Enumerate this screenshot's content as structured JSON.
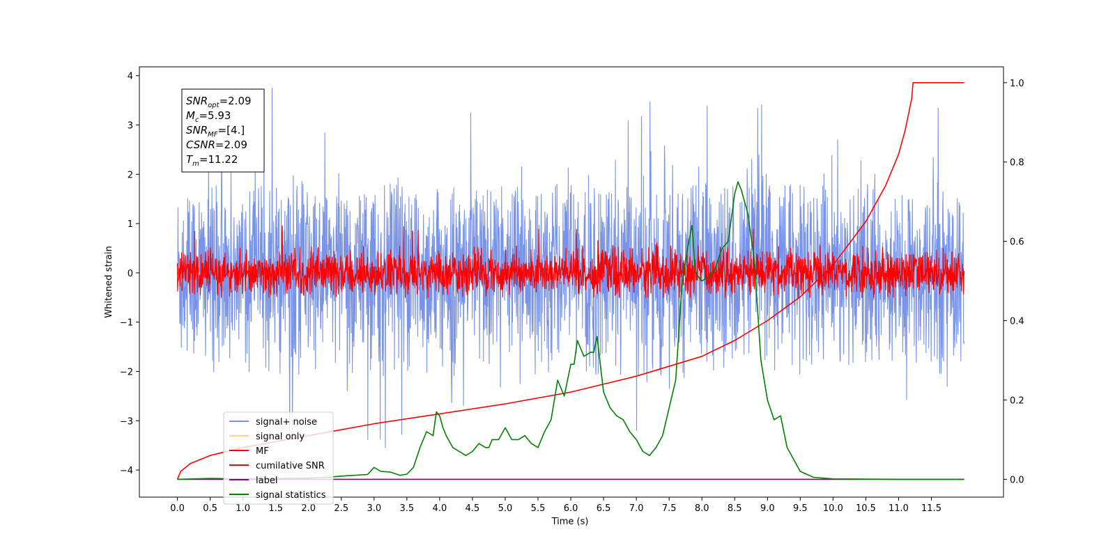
{
  "chart_data": {
    "type": "line",
    "title": "",
    "xlabel": "Time (s)",
    "ylabel": "Whitened strain",
    "xlim": [
      -0.58,
      12.6
    ],
    "ylim": [
      -4.55,
      4.18
    ],
    "y2lim": [
      -0.045,
      1.04
    ],
    "grid": false,
    "legend_position": "lower-left",
    "x_ticks": [
      0.0,
      0.5,
      1.0,
      1.5,
      2.0,
      2.5,
      3.0,
      3.5,
      4.0,
      4.5,
      5.0,
      5.5,
      6.0,
      6.5,
      7.0,
      7.5,
      8.0,
      8.5,
      9.0,
      9.5,
      10.0,
      10.5,
      11.0,
      11.5
    ],
    "x_tick_labels": [
      "0.0",
      "0.5",
      "1.0",
      "1.5",
      "2.0",
      "2.5",
      "3.0",
      "3.5",
      "4.0",
      "4.5",
      "5.0",
      "5.5",
      "6.0",
      "6.5",
      "7.0",
      "7.5",
      "8.0",
      "8.5",
      "9.0",
      "9.5",
      "10.0",
      "10.5",
      "11.0",
      "11.5"
    ],
    "y_ticks": [
      4,
      3,
      2,
      1,
      0,
      -1,
      -2,
      -3,
      -4
    ],
    "y_tick_labels": [
      "4",
      "3",
      "2",
      "1",
      "0",
      "−1",
      "−2",
      "−3",
      "−4"
    ],
    "y2_ticks": [
      1.0,
      0.8,
      0.6,
      0.4,
      0.2,
      0.0
    ],
    "y2_tick_labels": [
      "1.0",
      "0.8",
      "0.6",
      "0.4",
      "0.2",
      "0.0"
    ],
    "annotation": [
      {
        "sym": "SNR",
        "sub": "opt",
        "val": "=2.09"
      },
      {
        "sym": "M",
        "sub": "c",
        "val": "=5.93"
      },
      {
        "sym": "SNR",
        "sub": "MF",
        "val": "=[4.]"
      },
      {
        "sym": "CSNR",
        "sub": "",
        "val": "=2.09"
      },
      {
        "sym": "T",
        "sub": "m",
        "val": "=11.22"
      }
    ],
    "series": [
      {
        "name": "signal+ noise",
        "color": "#7893e8",
        "kind": "noise",
        "axis": "left",
        "x_range": [
          0.0,
          12.0
        ],
        "mean": 0.0,
        "envelope": [
          -2.1,
          1.8
        ],
        "extremes": [
          -3.7,
          3.8
        ]
      },
      {
        "name": "signal only",
        "color": "#fbd38a",
        "kind": "line",
        "axis": "left",
        "points": []
      },
      {
        "name": "MF",
        "color": "#ff0000",
        "kind": "noise",
        "axis": "left",
        "x_range": [
          0.0,
          12.0
        ],
        "mean": 0.0,
        "envelope": [
          -0.45,
          0.55
        ],
        "extremes": [
          -0.5,
          1.0
        ]
      },
      {
        "name": "cumilative SNR",
        "color": "#ff0000",
        "kind": "line",
        "axis": "right",
        "x": [
          0.0,
          0.05,
          0.2,
          0.5,
          1.0,
          2.0,
          3.0,
          4.0,
          5.0,
          6.0,
          7.0,
          8.0,
          8.5,
          9.0,
          9.5,
          10.0,
          10.5,
          10.8,
          11.0,
          11.1,
          11.2,
          11.22,
          12.0
        ],
        "y": [
          0.0,
          0.02,
          0.04,
          0.06,
          0.08,
          0.11,
          0.14,
          0.165,
          0.19,
          0.22,
          0.26,
          0.31,
          0.35,
          0.4,
          0.46,
          0.54,
          0.65,
          0.74,
          0.82,
          0.88,
          0.96,
          1.0,
          1.0
        ]
      },
      {
        "name": "label",
        "color": "#800080",
        "kind": "line",
        "axis": "right",
        "x": [
          0.0,
          12.0
        ],
        "y": [
          0.0,
          0.0
        ]
      },
      {
        "name": "signal statistics",
        "color": "#008000",
        "kind": "line",
        "axis": "right",
        "x": [
          0.0,
          0.5,
          1.0,
          1.5,
          2.0,
          2.3,
          2.5,
          2.7,
          2.9,
          3.0,
          3.1,
          3.25,
          3.4,
          3.5,
          3.6,
          3.7,
          3.8,
          3.9,
          3.95,
          4.0,
          4.05,
          4.1,
          4.2,
          4.3,
          4.4,
          4.5,
          4.6,
          4.7,
          4.75,
          4.8,
          4.9,
          5.0,
          5.1,
          5.2,
          5.3,
          5.4,
          5.5,
          5.6,
          5.7,
          5.8,
          5.9,
          6.0,
          6.05,
          6.1,
          6.2,
          6.3,
          6.35,
          6.4,
          6.5,
          6.6,
          6.7,
          6.8,
          6.9,
          7.0,
          7.1,
          7.2,
          7.3,
          7.4,
          7.5,
          7.6,
          7.7,
          7.8,
          7.85,
          7.9,
          8.0,
          8.1,
          8.2,
          8.3,
          8.4,
          8.5,
          8.55,
          8.6,
          8.7,
          8.8,
          8.9,
          9.0,
          9.1,
          9.2,
          9.3,
          9.5,
          9.7,
          10.0,
          11.0,
          12.0
        ],
        "y": [
          0.0,
          0.002,
          0.001,
          0.002,
          0.003,
          0.005,
          0.008,
          0.01,
          0.012,
          0.03,
          0.02,
          0.018,
          0.01,
          0.013,
          0.03,
          0.08,
          0.12,
          0.11,
          0.17,
          0.16,
          0.13,
          0.11,
          0.08,
          0.07,
          0.06,
          0.07,
          0.09,
          0.08,
          0.08,
          0.1,
          0.1,
          0.13,
          0.1,
          0.1,
          0.11,
          0.09,
          0.08,
          0.12,
          0.15,
          0.25,
          0.21,
          0.29,
          0.29,
          0.35,
          0.31,
          0.32,
          0.32,
          0.36,
          0.22,
          0.18,
          0.16,
          0.15,
          0.12,
          0.1,
          0.07,
          0.06,
          0.08,
          0.11,
          0.18,
          0.25,
          0.5,
          0.6,
          0.64,
          0.52,
          0.5,
          0.51,
          0.53,
          0.58,
          0.6,
          0.72,
          0.75,
          0.73,
          0.67,
          0.55,
          0.3,
          0.2,
          0.15,
          0.16,
          0.08,
          0.02,
          0.005,
          0.001,
          0.0,
          0.0
        ]
      }
    ]
  }
}
